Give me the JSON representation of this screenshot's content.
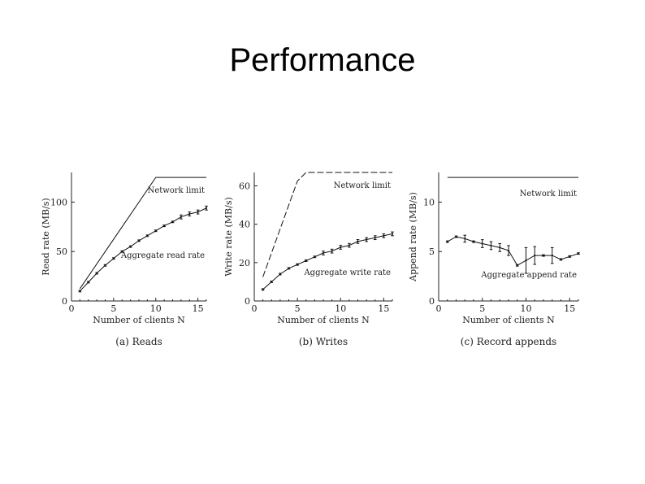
{
  "slide": {
    "title": "Performance"
  },
  "chart_data": [
    {
      "type": "line",
      "caption": "(a) Reads",
      "xlabel": "Number of clients N",
      "ylabel": "Read rate (MB/s)",
      "xlim": [
        0,
        16
      ],
      "ylim": [
        0,
        130
      ],
      "xticks": [
        0,
        5,
        10,
        15
      ],
      "yticks": [
        0,
        50,
        100
      ],
      "series": [
        {
          "name": "Network limit",
          "style": "solid",
          "x": [
            1,
            10,
            11,
            16
          ],
          "y": [
            12.5,
            125,
            125,
            125
          ]
        },
        {
          "name": "Aggregate read rate",
          "style": "solid",
          "errorbars": true,
          "x": [
            1,
            2,
            3,
            4,
            5,
            6,
            7,
            8,
            9,
            10,
            11,
            12,
            13,
            14,
            15,
            16
          ],
          "y": [
            10,
            19,
            28,
            36,
            43,
            50,
            55,
            61,
            66,
            71,
            76,
            80,
            85,
            88,
            90,
            94
          ]
        }
      ],
      "grid": false
    },
    {
      "type": "line",
      "caption": "(b) Writes",
      "xlabel": "Number of clients N",
      "ylabel": "Write rate (MB/s)",
      "xlim": [
        0,
        16
      ],
      "ylim": [
        0,
        67
      ],
      "xticks": [
        0,
        5,
        10,
        15
      ],
      "yticks": [
        0,
        20,
        40,
        60
      ],
      "series": [
        {
          "name": "Network limit",
          "style": "dashed",
          "x": [
            1,
            5,
            6,
            16
          ],
          "y": [
            12.5,
            62.5,
            67,
            67
          ]
        },
        {
          "name": "Aggregate write rate",
          "style": "solid",
          "errorbars": true,
          "x": [
            1,
            2,
            3,
            4,
            5,
            6,
            7,
            8,
            9,
            10,
            11,
            12,
            13,
            14,
            15,
            16
          ],
          "y": [
            6,
            10,
            14,
            17,
            19,
            21,
            23,
            25,
            26,
            28,
            29,
            31,
            32,
            33,
            34,
            35
          ]
        }
      ],
      "grid": false
    },
    {
      "type": "line",
      "caption": "(c) Record appends",
      "xlabel": "Number of clients N",
      "ylabel": "Append rate (MB/s)",
      "xlim": [
        0,
        16
      ],
      "ylim": [
        0,
        13
      ],
      "xticks": [
        0,
        5,
        10,
        15
      ],
      "yticks": [
        0,
        5,
        10
      ],
      "series": [
        {
          "name": "Network limit",
          "style": "solid",
          "x": [
            1,
            16
          ],
          "y": [
            12.5,
            12.5
          ]
        },
        {
          "name": "Aggregate append rate",
          "style": "solid",
          "errorbars": true,
          "x": [
            1,
            2,
            3,
            4,
            5,
            6,
            7,
            8,
            9,
            10,
            11,
            12,
            13,
            14,
            15,
            16
          ],
          "y": [
            6.0,
            6.5,
            6.3,
            6.0,
            5.8,
            5.6,
            5.4,
            5.1,
            3.6,
            4.1,
            4.6,
            4.6,
            4.6,
            4.2,
            4.5,
            4.8
          ]
        }
      ],
      "grid": false
    }
  ]
}
